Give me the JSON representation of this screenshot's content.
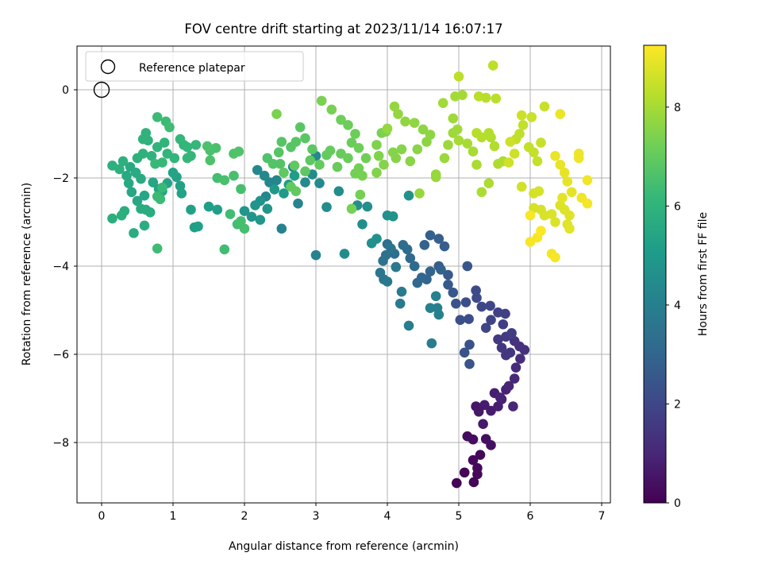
{
  "chart_data": {
    "type": "scatter",
    "title": "FOV centre drift starting at 2023/11/14 16:07:17",
    "xlabel": "Angular distance from reference (arcmin)",
    "ylabel": "Rotation from reference (arcmin)",
    "xlim": [
      -0.34,
      7.1
    ],
    "ylim": [
      -9.35,
      1.0
    ],
    "xticks": [
      0,
      1,
      2,
      3,
      4,
      5,
      6,
      7
    ],
    "yticks": [
      0,
      -2,
      -4,
      -6,
      -8
    ],
    "grid": true,
    "legend": {
      "placement": "top-left",
      "entries": [
        "Reference platepar"
      ]
    },
    "reference_point": {
      "x": 0,
      "y": 0
    },
    "colorbar": {
      "label": "Hours from first FF file",
      "colormap": "viridis",
      "range": [
        0,
        9.25
      ],
      "ticks": [
        0,
        2,
        4,
        6,
        8
      ]
    },
    "colormap_stops": [
      "#440154",
      "#482878",
      "#3e4989",
      "#31688e",
      "#26828e",
      "#1f9e89",
      "#35b779",
      "#6ece58",
      "#b5de2b",
      "#fde725"
    ],
    "points": [
      [
        4.97,
        -8.92,
        0.05
      ],
      [
        5.08,
        -8.68,
        0.1
      ],
      [
        5.21,
        -8.9,
        0.12
      ],
      [
        5.26,
        -8.72,
        0.15
      ],
      [
        5.2,
        -8.4,
        0.18
      ],
      [
        5.26,
        -8.58,
        0.2
      ],
      [
        5.3,
        -8.28,
        0.22
      ],
      [
        5.12,
        -7.86,
        0.28
      ],
      [
        5.2,
        -7.93,
        0.32
      ],
      [
        5.38,
        -7.92,
        0.35
      ],
      [
        5.45,
        -8.06,
        0.38
      ],
      [
        5.24,
        -7.18,
        0.55
      ],
      [
        5.28,
        -7.3,
        0.6
      ],
      [
        5.34,
        -7.58,
        0.62
      ],
      [
        5.36,
        -7.15,
        0.68
      ],
      [
        5.45,
        -7.28,
        0.72
      ],
      [
        5.5,
        -6.88,
        0.78
      ],
      [
        5.55,
        -7.18,
        0.8
      ],
      [
        5.6,
        -7.02,
        0.85
      ],
      [
        5.66,
        -6.8,
        0.88
      ],
      [
        5.58,
        -6.98,
        0.9
      ],
      [
        5.7,
        -6.72,
        0.95
      ],
      [
        5.76,
        -7.18,
        1.0
      ],
      [
        5.78,
        -6.55,
        1.05
      ],
      [
        5.8,
        -6.3,
        1.12
      ],
      [
        5.86,
        -6.1,
        1.2
      ],
      [
        5.92,
        -5.9,
        1.25
      ],
      [
        5.85,
        -5.82,
        1.3
      ],
      [
        5.78,
        -5.7,
        1.38
      ],
      [
        5.72,
        -5.96,
        1.42
      ],
      [
        5.66,
        -6.02,
        1.48
      ],
      [
        5.6,
        -5.85,
        1.52
      ],
      [
        5.55,
        -5.66,
        1.55
      ],
      [
        5.66,
        -5.6,
        1.62
      ],
      [
        5.74,
        -5.52,
        1.68
      ],
      [
        5.62,
        -5.32,
        1.72
      ],
      [
        5.55,
        -5.05,
        1.78
      ],
      [
        5.65,
        -5.08,
        1.82
      ],
      [
        5.45,
        -5.22,
        1.88
      ],
      [
        5.38,
        -5.4,
        1.92
      ],
      [
        5.44,
        -4.9,
        1.98
      ],
      [
        5.32,
        -4.92,
        2.02
      ],
      [
        5.25,
        -4.72,
        2.08
      ],
      [
        5.24,
        -4.55,
        2.12
      ],
      [
        5.14,
        -5.2,
        2.18
      ],
      [
        5.1,
        -4.82,
        2.22
      ],
      [
        5.02,
        -5.22,
        2.28
      ],
      [
        4.96,
        -4.85,
        2.32
      ],
      [
        5.15,
        -5.78,
        2.36
      ],
      [
        5.08,
        -5.96,
        2.4
      ],
      [
        5.15,
        -6.22,
        2.45
      ],
      [
        5.12,
        -4.0,
        2.48
      ],
      [
        4.92,
        -4.6,
        2.52
      ],
      [
        4.85,
        -4.42,
        2.58
      ],
      [
        4.85,
        -4.2,
        2.62
      ],
      [
        4.72,
        -4.0,
        2.68
      ],
      [
        4.8,
        -3.55,
        2.72
      ],
      [
        4.72,
        -3.38,
        2.78
      ],
      [
        4.6,
        -3.3,
        2.82
      ],
      [
        4.52,
        -3.52,
        2.86
      ],
      [
        4.75,
        -4.08,
        2.9
      ],
      [
        4.6,
        -4.12,
        2.95
      ],
      [
        4.55,
        -4.3,
        3.0
      ],
      [
        4.48,
        -4.26,
        3.05
      ],
      [
        4.42,
        -4.38,
        3.1
      ],
      [
        4.38,
        -4.0,
        3.15
      ],
      [
        4.32,
        -3.82,
        3.2
      ],
      [
        4.28,
        -3.62,
        3.25
      ],
      [
        4.22,
        -3.52,
        3.3
      ],
      [
        4.1,
        -3.72,
        3.35
      ],
      [
        4.0,
        -3.5,
        3.4
      ],
      [
        3.98,
        -3.75,
        3.45
      ],
      [
        3.94,
        -3.88,
        3.5
      ],
      [
        4.05,
        -3.6,
        3.55
      ],
      [
        3.9,
        -4.15,
        3.6
      ],
      [
        3.95,
        -4.3,
        3.65
      ],
      [
        4.0,
        -4.35,
        3.7
      ],
      [
        4.12,
        -4.02,
        3.75
      ],
      [
        4.18,
        -4.85,
        3.8
      ],
      [
        4.2,
        -4.58,
        3.85
      ],
      [
        4.3,
        -5.35,
        3.9
      ],
      [
        4.62,
        -5.75,
        3.93
      ],
      [
        4.7,
        -4.95,
        3.98
      ],
      [
        4.72,
        -5.1,
        4.02
      ],
      [
        4.68,
        -4.68,
        4.05
      ],
      [
        4.6,
        -4.95,
        4.08
      ],
      [
        3.0,
        -3.75,
        4.12
      ],
      [
        2.52,
        -3.15,
        4.15
      ],
      [
        2.75,
        -2.58,
        4.2
      ],
      [
        2.68,
        -1.75,
        4.22
      ],
      [
        2.45,
        -2.05,
        4.25
      ],
      [
        2.35,
        -2.1,
        4.28
      ],
      [
        2.3,
        -2.42,
        4.3
      ],
      [
        2.28,
        -1.95,
        4.32
      ],
      [
        2.18,
        -1.82,
        4.35
      ],
      [
        3.0,
        -1.5,
        4.38
      ],
      [
        2.95,
        -1.92,
        4.4
      ],
      [
        2.85,
        -2.1,
        4.42
      ],
      [
        3.05,
        -2.12,
        4.45
      ],
      [
        3.15,
        -2.66,
        4.48
      ],
      [
        3.32,
        -2.3,
        4.5
      ],
      [
        3.4,
        -3.72,
        4.52
      ],
      [
        3.58,
        -2.62,
        4.55
      ],
      [
        3.65,
        -3.05,
        4.58
      ],
      [
        3.72,
        -2.65,
        4.6
      ],
      [
        3.78,
        -3.48,
        4.62
      ],
      [
        3.85,
        -3.38,
        4.65
      ],
      [
        4.0,
        -2.85,
        4.68
      ],
      [
        4.08,
        -2.87,
        4.7
      ],
      [
        4.3,
        -2.4,
        4.72
      ],
      [
        2.22,
        -2.52,
        4.75
      ],
      [
        2.15,
        -2.62,
        4.78
      ],
      [
        2.1,
        -2.88,
        4.8
      ],
      [
        2.0,
        -2.75,
        4.85
      ],
      [
        2.22,
        -2.95,
        4.88
      ],
      [
        2.32,
        -2.7,
        4.9
      ],
      [
        2.42,
        -2.26,
        4.95
      ],
      [
        2.55,
        -2.35,
        5.0
      ],
      [
        2.62,
        -2.15,
        5.05
      ],
      [
        2.7,
        -1.95,
        5.1
      ],
      [
        1.5,
        -2.65,
        5.15
      ],
      [
        1.62,
        -2.72,
        5.18
      ],
      [
        1.3,
        -3.12,
        5.2
      ],
      [
        1.35,
        -3.1,
        5.22
      ],
      [
        1.25,
        -2.72,
        5.25
      ],
      [
        1.1,
        -2.18,
        5.28
      ],
      [
        1.12,
        -2.35,
        5.3
      ],
      [
        1.05,
        -1.98,
        5.33
      ],
      [
        1.0,
        -1.88,
        5.36
      ],
      [
        0.92,
        -2.12,
        5.4
      ],
      [
        0.85,
        -2.3,
        5.42
      ],
      [
        0.8,
        -2.25,
        5.44
      ],
      [
        0.72,
        -2.1,
        5.46
      ],
      [
        0.6,
        -2.4,
        5.48
      ],
      [
        0.5,
        -2.52,
        5.5
      ],
      [
        0.42,
        -2.32,
        5.52
      ],
      [
        0.38,
        -2.12,
        5.55
      ],
      [
        0.35,
        -1.95,
        5.58
      ],
      [
        0.4,
        -1.75,
        5.6
      ],
      [
        0.48,
        -1.88,
        5.62
      ],
      [
        0.55,
        -2.02,
        5.64
      ],
      [
        0.62,
        -2.72,
        5.66
      ],
      [
        0.68,
        -2.78,
        5.68
      ],
      [
        0.55,
        -2.7,
        5.7
      ],
      [
        0.45,
        -3.25,
        5.72
      ],
      [
        0.6,
        -3.08,
        5.74
      ],
      [
        0.32,
        -2.75,
        5.76
      ],
      [
        0.28,
        -2.85,
        5.78
      ],
      [
        0.15,
        -2.92,
        5.8
      ],
      [
        0.25,
        -1.8,
        5.82
      ],
      [
        0.15,
        -1.72,
        5.84
      ],
      [
        0.3,
        -1.62,
        5.86
      ],
      [
        0.5,
        -1.55,
        5.88
      ],
      [
        0.58,
        -1.45,
        5.9
      ],
      [
        0.7,
        -1.5,
        5.92
      ],
      [
        0.65,
        -1.15,
        5.94
      ],
      [
        0.58,
        -1.12,
        5.96
      ],
      [
        0.62,
        -0.98,
        5.98
      ],
      [
        0.78,
        -1.3,
        6.0
      ],
      [
        0.88,
        -1.2,
        6.02
      ],
      [
        0.92,
        -1.45,
        6.04
      ],
      [
        1.02,
        -1.55,
        6.06
      ],
      [
        1.15,
        -1.25,
        6.08
      ],
      [
        1.1,
        -1.12,
        6.1
      ],
      [
        1.2,
        -1.3,
        6.12
      ],
      [
        1.25,
        -1.5,
        6.14
      ],
      [
        1.32,
        -1.25,
        6.16
      ],
      [
        1.2,
        -1.55,
        6.18
      ],
      [
        0.85,
        -1.65,
        6.2
      ],
      [
        0.75,
        -1.68,
        6.22
      ],
      [
        0.85,
        -2.22,
        6.24
      ],
      [
        0.78,
        -2.42,
        6.26
      ],
      [
        0.82,
        -2.48,
        6.28
      ],
      [
        0.78,
        -0.62,
        6.3
      ],
      [
        0.9,
        -0.72,
        6.32
      ],
      [
        0.95,
        -0.85,
        6.34
      ],
      [
        0.78,
        -3.6,
        6.36
      ],
      [
        1.72,
        -3.62,
        6.38
      ],
      [
        1.8,
        -2.82,
        6.4
      ],
      [
        1.62,
        -2.0,
        6.42
      ],
      [
        1.9,
        -3.05,
        6.44
      ],
      [
        1.95,
        -2.98,
        6.46
      ],
      [
        2.0,
        -3.15,
        6.48
      ],
      [
        1.95,
        -2.25,
        6.5
      ],
      [
        1.85,
        -1.95,
        6.52
      ],
      [
        1.72,
        -2.05,
        6.54
      ],
      [
        1.6,
        -1.32,
        6.56
      ],
      [
        1.52,
        -1.38,
        6.58
      ],
      [
        1.48,
        -1.28,
        6.6
      ],
      [
        1.52,
        -1.6,
        6.62
      ],
      [
        1.85,
        -1.45,
        6.64
      ],
      [
        1.92,
        -1.4,
        6.66
      ],
      [
        2.32,
        -1.55,
        6.68
      ],
      [
        2.4,
        -1.68,
        6.7
      ],
      [
        2.5,
        -1.68,
        6.72
      ],
      [
        2.48,
        -1.42,
        6.74
      ],
      [
        2.52,
        -1.18,
        6.76
      ],
      [
        2.65,
        -1.3,
        6.78
      ],
      [
        2.72,
        -1.18,
        6.8
      ],
      [
        2.78,
        -0.85,
        6.82
      ],
      [
        2.85,
        -1.1,
        6.84
      ],
      [
        2.95,
        -1.35,
        6.86
      ],
      [
        2.92,
        -1.6,
        6.88
      ],
      [
        2.85,
        -1.85,
        6.9
      ],
      [
        2.7,
        -1.72,
        6.92
      ],
      [
        2.55,
        -1.88,
        6.94
      ],
      [
        2.65,
        -2.2,
        6.96
      ],
      [
        2.72,
        -2.3,
        6.98
      ],
      [
        3.05,
        -1.7,
        7.0
      ],
      [
        3.15,
        -1.48,
        7.02
      ],
      [
        3.2,
        -1.38,
        7.04
      ],
      [
        3.35,
        -1.45,
        7.06
      ],
      [
        3.3,
        -1.75,
        7.08
      ],
      [
        3.45,
        -1.55,
        7.1
      ],
      [
        3.5,
        -1.2,
        7.12
      ],
      [
        3.55,
        -1.0,
        7.14
      ],
      [
        3.45,
        -0.8,
        7.16
      ],
      [
        3.35,
        -0.68,
        7.18
      ],
      [
        3.6,
        -1.32,
        7.2
      ],
      [
        3.7,
        -1.55,
        7.22
      ],
      [
        3.6,
        -1.78,
        7.24
      ],
      [
        3.55,
        -1.9,
        7.26
      ],
      [
        3.62,
        -2.38,
        7.28
      ],
      [
        3.5,
        -2.7,
        7.3
      ],
      [
        3.65,
        -1.95,
        7.32
      ],
      [
        3.22,
        -0.45,
        7.34
      ],
      [
        3.08,
        -0.25,
        7.36
      ],
      [
        2.45,
        -0.55,
        7.38
      ],
      [
        3.92,
        -0.98,
        7.4
      ],
      [
        3.98,
        -0.95,
        7.42
      ],
      [
        3.85,
        -1.25,
        7.44
      ],
      [
        3.88,
        -1.5,
        7.46
      ],
      [
        3.85,
        -1.88,
        7.48
      ],
      [
        3.95,
        -1.7,
        7.5
      ],
      [
        4.08,
        -1.42,
        7.52
      ],
      [
        4.12,
        -1.55,
        7.54
      ],
      [
        4.2,
        -1.35,
        7.56
      ],
      [
        4.32,
        -1.62,
        7.58
      ],
      [
        4.42,
        -1.35,
        7.6
      ],
      [
        4.55,
        -1.18,
        7.62
      ],
      [
        4.6,
        -1.02,
        7.64
      ],
      [
        4.5,
        -0.9,
        7.66
      ],
      [
        4.38,
        -0.75,
        7.68
      ],
      [
        4.25,
        -0.72,
        7.7
      ],
      [
        4.15,
        -0.55,
        7.72
      ],
      [
        4.1,
        -0.38,
        7.74
      ],
      [
        4.0,
        -0.88,
        7.76
      ],
      [
        4.45,
        -2.35,
        7.78
      ],
      [
        4.68,
        -1.98,
        7.8
      ],
      [
        4.68,
        -1.92,
        7.82
      ],
      [
        4.8,
        -1.55,
        7.84
      ],
      [
        4.85,
        -1.25,
        7.86
      ],
      [
        4.92,
        -0.98,
        7.88
      ],
      [
        4.98,
        -0.9,
        7.9
      ],
      [
        4.92,
        -0.65,
        7.92
      ],
      [
        4.78,
        -0.3,
        7.94
      ],
      [
        5.05,
        -0.12,
        7.96
      ],
      [
        4.95,
        -0.15,
        7.98
      ],
      [
        5.0,
        -1.15,
        8.0
      ],
      [
        5.12,
        -1.22,
        8.02
      ],
      [
        5.2,
        -1.4,
        8.04
      ],
      [
        5.25,
        -1.7,
        8.06
      ],
      [
        5.32,
        -2.32,
        8.08
      ],
      [
        5.42,
        -2.12,
        8.1
      ],
      [
        5.55,
        -1.68,
        8.12
      ],
      [
        5.62,
        -1.62,
        8.14
      ],
      [
        5.5,
        -1.28,
        8.16
      ],
      [
        5.45,
        -1.08,
        8.18
      ],
      [
        5.42,
        -0.98,
        8.2
      ],
      [
        5.32,
        -1.08,
        8.22
      ],
      [
        5.25,
        -0.98,
        8.24
      ],
      [
        5.38,
        -0.18,
        8.26
      ],
      [
        5.28,
        -0.15,
        8.28
      ],
      [
        5.52,
        -0.2,
        8.3
      ],
      [
        5.48,
        0.55,
        8.32
      ],
      [
        5.0,
        0.3,
        8.34
      ],
      [
        5.8,
        -1.12,
        8.36
      ],
      [
        5.85,
        -1.0,
        8.38
      ],
      [
        5.9,
        -0.8,
        8.4
      ],
      [
        5.98,
        -1.3,
        8.42
      ],
      [
        6.05,
        -1.42,
        8.44
      ],
      [
        6.1,
        -1.62,
        8.46
      ],
      [
        6.15,
        -1.2,
        8.48
      ],
      [
        6.2,
        -0.38,
        8.5
      ],
      [
        6.02,
        -0.62,
        8.52
      ],
      [
        5.88,
        -0.58,
        8.54
      ],
      [
        5.72,
        -1.18,
        8.56
      ],
      [
        5.78,
        -1.45,
        8.58
      ],
      [
        5.7,
        -1.65,
        8.6
      ],
      [
        5.88,
        -2.2,
        8.62
      ],
      [
        6.05,
        -2.35,
        8.64
      ],
      [
        6.12,
        -2.3,
        8.66
      ],
      [
        6.05,
        -2.68,
        8.68
      ],
      [
        6.15,
        -2.72,
        8.7
      ],
      [
        6.2,
        -2.85,
        8.72
      ],
      [
        6.3,
        -2.82,
        8.74
      ],
      [
        6.35,
        -3.0,
        8.76
      ],
      [
        6.42,
        -2.62,
        8.78
      ],
      [
        6.48,
        -2.72,
        8.8
      ],
      [
        6.55,
        -2.85,
        8.82
      ],
      [
        6.52,
        -3.05,
        8.84
      ],
      [
        6.55,
        -3.15,
        8.86
      ],
      [
        6.45,
        -2.45,
        8.88
      ],
      [
        6.58,
        -2.32,
        8.9
      ],
      [
        6.52,
        -2.08,
        8.92
      ],
      [
        6.48,
        -1.88,
        8.94
      ],
      [
        6.42,
        -1.7,
        8.96
      ],
      [
        6.35,
        -1.5,
        8.98
      ],
      [
        6.42,
        -0.55,
        9.0
      ],
      [
        6.68,
        -1.45,
        9.02
      ],
      [
        6.68,
        -1.55,
        9.04
      ],
      [
        6.72,
        -2.45,
        9.06
      ],
      [
        6.8,
        -2.05,
        9.08
      ],
      [
        6.8,
        -2.58,
        9.1
      ],
      [
        6.3,
        -3.72,
        9.12
      ],
      [
        6.35,
        -3.8,
        9.14
      ],
      [
        6.0,
        -3.45,
        9.16
      ],
      [
        6.1,
        -3.35,
        9.18
      ],
      [
        6.0,
        -2.85,
        9.2
      ],
      [
        6.15,
        -3.2,
        9.22
      ]
    ]
  }
}
